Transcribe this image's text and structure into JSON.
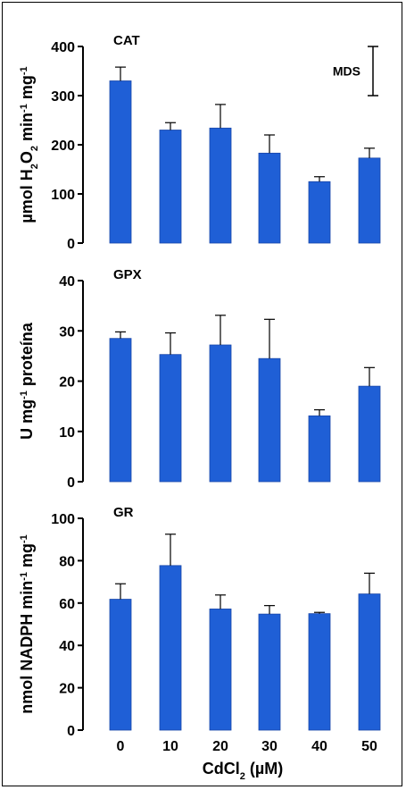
{
  "chart_data": [
    {
      "type": "bar",
      "panel_label": "CAT",
      "ylabel_parts": [
        "µmol H",
        "2",
        "O",
        "2",
        " min",
        "-1",
        " mg",
        "-1"
      ],
      "categories": [
        "0",
        "10",
        "20",
        "30",
        "40",
        "50"
      ],
      "values": [
        330,
        230,
        234,
        183,
        125,
        173
      ],
      "errors": [
        28,
        15,
        48,
        37,
        10,
        20
      ],
      "ylim": [
        0,
        400
      ],
      "yticks": [
        "0",
        "100",
        "200",
        "300",
        "400"
      ],
      "annotation": "MDS",
      "annotation_span": 100,
      "bar_color": "#1f5fd6"
    },
    {
      "type": "bar",
      "panel_label": "GPX",
      "ylabel_parts": [
        "U mg",
        "-1",
        " proteína"
      ],
      "categories": [
        "0",
        "10",
        "20",
        "30",
        "40",
        "50"
      ],
      "values": [
        28.5,
        25.3,
        27.2,
        24.5,
        13.1,
        19.0
      ],
      "errors": [
        1.3,
        4.3,
        5.9,
        7.8,
        1.2,
        3.7
      ],
      "ylim": [
        0,
        40
      ],
      "yticks": [
        "0",
        "10",
        "20",
        "30",
        "40"
      ],
      "bar_color": "#1f5fd6"
    },
    {
      "type": "bar",
      "panel_label": "GR",
      "ylabel_parts": [
        "nmol NADPH min",
        "-1",
        " mg",
        "-1"
      ],
      "categories": [
        "0",
        "10",
        "20",
        "30",
        "40",
        "50"
      ],
      "values": [
        61.8,
        77.7,
        57.2,
        54.8,
        55.0,
        64.3
      ],
      "errors": [
        7.3,
        14.8,
        6.6,
        4.0,
        0.6,
        9.8
      ],
      "ylim": [
        0,
        100
      ],
      "yticks": [
        "0",
        "20",
        "40",
        "60",
        "80",
        "100"
      ],
      "bar_color": "#1f5fd6"
    }
  ],
  "xlabel_parts": [
    "CdCl",
    "2",
    " (µM)"
  ],
  "xtick_labels": [
    "0",
    "10",
    "20",
    "30",
    "40",
    "50"
  ]
}
